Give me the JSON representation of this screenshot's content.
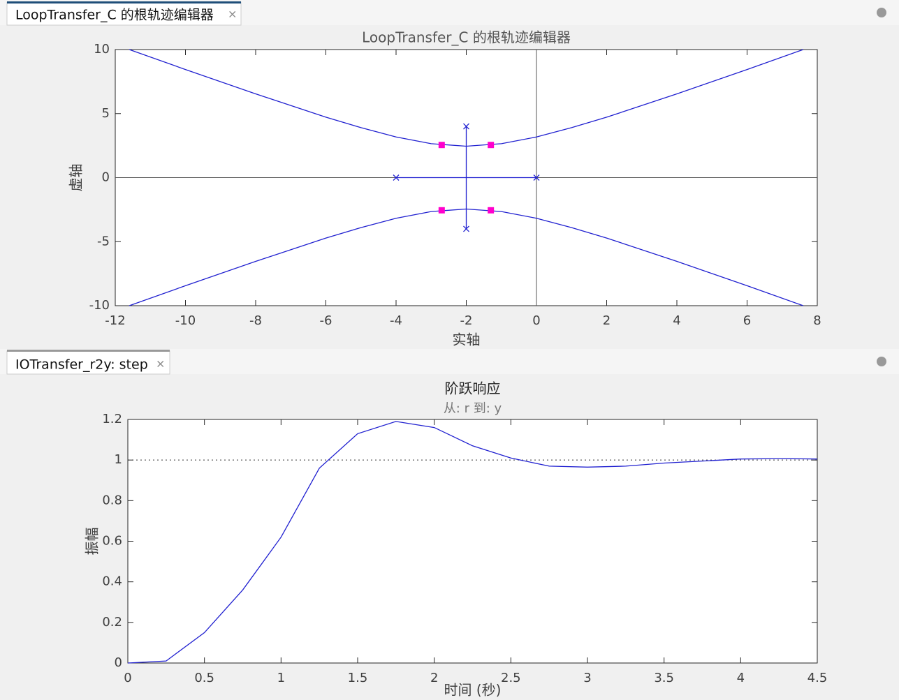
{
  "tabs": [
    {
      "label": "LoopTransfer_C 的根轨迹编辑器"
    },
    {
      "label": "IOTransfer_r2y: step"
    }
  ],
  "chart_data": [
    {
      "type": "root-locus",
      "title": "LoopTransfer_C 的根轨迹编辑器",
      "xlabel": "实轴",
      "ylabel": "虚轴",
      "xlim": [
        -12,
        8
      ],
      "ylim": [
        -10,
        10
      ],
      "xticks": [
        -12,
        -10,
        -8,
        -6,
        -4,
        -2,
        0,
        2,
        4,
        6,
        8
      ],
      "yticks": [
        -10,
        -5,
        0,
        5,
        10
      ],
      "crosshair": {
        "x": 0,
        "y": 0
      },
      "series": [
        {
          "color": "#2020d0",
          "marker": "none",
          "x": [
            -11.6,
            -10,
            -8,
            -6,
            -5,
            -4,
            -3,
            -2,
            -1,
            0,
            1,
            2,
            4,
            6,
            7.6
          ],
          "values": [
            10.0,
            8.44,
            6.54,
            4.72,
            3.9,
            3.17,
            2.65,
            2.45,
            2.65,
            3.17,
            3.9,
            4.72,
            6.54,
            8.44,
            10.0
          ]
        },
        {
          "color": "#2020d0",
          "marker": "none",
          "x": [
            -11.6,
            -10,
            -8,
            -6,
            -5,
            -4,
            -3,
            -2,
            -1,
            0,
            1,
            2,
            4,
            6,
            7.6
          ],
          "values": [
            -10.0,
            -8.44,
            -6.54,
            -4.72,
            -3.9,
            -3.17,
            -2.65,
            -2.45,
            -2.65,
            -3.17,
            -3.9,
            -4.72,
            -6.54,
            -8.44,
            -10.0
          ]
        },
        {
          "color": "#2020d0",
          "marker": "none",
          "x": [
            -4,
            0
          ],
          "values": [
            0,
            0
          ]
        },
        {
          "color": "#2020d0",
          "marker": "none",
          "x": [
            -2,
            -2
          ],
          "values": [
            -4,
            4
          ]
        },
        {
          "color": "#2020d0",
          "marker": "cross",
          "x": [
            0,
            -4,
            -2,
            -2
          ],
          "values": [
            0,
            0,
            4,
            -4
          ]
        },
        {
          "color": "#ff00cc",
          "marker": "square",
          "x": [
            -2.7,
            -1.3,
            -2.7,
            -1.3
          ],
          "values": [
            2.55,
            2.55,
            -2.55,
            -2.55
          ]
        }
      ]
    },
    {
      "type": "line",
      "title": "阶跃响应",
      "subtitle": "从: r  到: y",
      "xlabel": "时间 (秒)",
      "ylabel": "振幅",
      "xlim": [
        0,
        4.5
      ],
      "ylim": [
        0,
        1.2
      ],
      "xticks": [
        0,
        0.5,
        1,
        1.5,
        2,
        2.5,
        3,
        3.5,
        4,
        4.5
      ],
      "yticks": [
        0,
        0.2,
        0.4,
        0.6,
        0.8,
        1,
        1.2
      ],
      "reference_line": 1,
      "series": [
        {
          "color": "#2020d0",
          "marker": "none",
          "x": [
            0,
            0.25,
            0.5,
            0.75,
            1,
            1.25,
            1.5,
            1.75,
            2,
            2.25,
            2.5,
            2.75,
            3,
            3.25,
            3.5,
            3.75,
            4,
            4.25,
            4.5
          ],
          "values": [
            0,
            0.01,
            0.15,
            0.36,
            0.62,
            0.96,
            1.13,
            1.19,
            1.16,
            1.07,
            1.01,
            0.97,
            0.965,
            0.97,
            0.985,
            0.995,
            1.005,
            1.007,
            1.005
          ]
        }
      ]
    }
  ]
}
